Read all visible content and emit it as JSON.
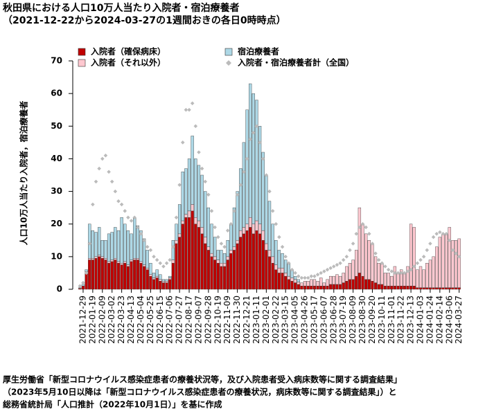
{
  "chart_data": {
    "type": "bar",
    "title": [
      "秋田県における人口10万人当たり入院者・宿泊療養者",
      "（2021-12-22から2024-03-27の1週間おきの各日0時時点）"
    ],
    "ylabel": "人口10万人当たり入院者，宿泊療養者",
    "source": [
      "厚生労働省「新型コロナウイルス感染症患者の療養状況等，及び入院患者受入病床数等に関する調査結果」",
      "（2023年5月10日以降は「新型コロナウイルス感染症患者の療養状況，病床数等に関する調査結果」）と",
      "総務省統計局「人口推計（2022年10月1日）」を基に作成"
    ],
    "categories": [
      null,
      "2021-12-29",
      null,
      null,
      "2022-01-19",
      null,
      null,
      "2022-02-09",
      null,
      null,
      "2022-03-02",
      null,
      null,
      "2022-03-23",
      null,
      null,
      "2022-04-13",
      null,
      null,
      "2022-05-04",
      null,
      null,
      "2022-05-25",
      null,
      null,
      "2022-06-15",
      null,
      null,
      "2022-07-06",
      null,
      null,
      "2022-07-27",
      null,
      null,
      "2022-08-17",
      null,
      null,
      "2022-09-07",
      null,
      null,
      "2022-09-28",
      null,
      null,
      "2022-10-19",
      null,
      null,
      "2022-11-09",
      null,
      null,
      "2022-11-30",
      null,
      null,
      "2022-12-21",
      null,
      null,
      "2023-01-11",
      null,
      null,
      "2023-02-01",
      null,
      null,
      "2023-02-22",
      null,
      null,
      "2023-03-15",
      null,
      null,
      "2023-04-05",
      null,
      null,
      "2023-04-26",
      null,
      null,
      "2023-05-17",
      null,
      null,
      "2023-06-07",
      null,
      null,
      "2023-06-28",
      null,
      null,
      "2023-07-19",
      null,
      null,
      "2023-08-09",
      null,
      null,
      "2023-08-30",
      null,
      null,
      "2023-09-20",
      null,
      null,
      "2023-10-11",
      null,
      null,
      "2023-11-01",
      null,
      null,
      "2023-11-22",
      null,
      null,
      "2023-12-13",
      null,
      null,
      "2024-01-03",
      null,
      null,
      "2024-01-24",
      null,
      null,
      "2024-02-14",
      null,
      null,
      "2024-03-06",
      null,
      null,
      "2024-03-27"
    ],
    "series": [
      {
        "name": "入院者（確保病床）",
        "color": "#c00000",
        "values": [
          0.3,
          1,
          5,
          9,
          9,
          9.5,
          10,
          9.5,
          9,
          8,
          8.5,
          9,
          8,
          7.5,
          8,
          7,
          8.5,
          9,
          9,
          8,
          7,
          6,
          4,
          3,
          3.5,
          2.5,
          2,
          2,
          3,
          8,
          14,
          16,
          20,
          22,
          22,
          24,
          20,
          19,
          17,
          14,
          12,
          10,
          9,
          8,
          7,
          7,
          9,
          11,
          12,
          14,
          16,
          17,
          18,
          19,
          17,
          18,
          17,
          15,
          12,
          10,
          8,
          6,
          5,
          5,
          4,
          3,
          2.5,
          2,
          1.5,
          1,
          1,
          1,
          1,
          1,
          1,
          1,
          1,
          1,
          1.5,
          1.5,
          1.5,
          1.5,
          2,
          2.5,
          3,
          3,
          4,
          5,
          4,
          3,
          3,
          2.5,
          2,
          1.5,
          1.5,
          1,
          1,
          1,
          1,
          1,
          1,
          1,
          1,
          1,
          1,
          0.5,
          0.5,
          0.5,
          0.5,
          0.5,
          0.5,
          0.5,
          0.5,
          0.5,
          0.5,
          0.5,
          0.5,
          0.5,
          0.5
        ]
      },
      {
        "name": "入院者（それ以外）",
        "color": "#ffc8d0",
        "values": [
          0,
          0,
          0.5,
          0.5,
          0.5,
          0.5,
          0.5,
          0.5,
          0.5,
          0.5,
          0.5,
          0.5,
          0.5,
          0.5,
          0.5,
          0.5,
          0.5,
          0.5,
          0.5,
          0.5,
          0.5,
          0.5,
          0.5,
          0.5,
          0.5,
          0.5,
          0.5,
          0.5,
          0.5,
          1,
          1,
          1,
          1,
          1,
          2,
          2,
          2,
          2,
          2,
          2,
          1,
          1,
          1,
          1,
          1,
          1,
          1,
          1,
          1,
          1,
          2,
          2,
          2,
          3,
          3,
          3,
          3,
          3,
          2,
          2,
          2,
          1.5,
          1.5,
          1.5,
          1,
          1,
          1,
          1,
          0.7,
          1,
          1.5,
          1.5,
          2,
          2,
          1.5,
          2.5,
          1,
          2,
          2.5,
          2.5,
          3,
          2.5,
          3,
          4.5,
          5,
          6,
          8,
          20,
          16,
          14,
          12,
          11.5,
          8,
          6.5,
          6.5,
          4,
          4,
          3,
          6,
          4,
          5,
          4,
          6,
          19,
          18,
          5.5,
          6.5,
          5.5,
          7.5,
          8.5,
          9.5,
          12.5,
          15.5,
          16.5,
          16.5,
          18.5,
          14.5,
          14.5,
          15
        ]
      },
      {
        "name": "宿泊療養者",
        "color": "#add8e6",
        "values": [
          0.2,
          0.5,
          0.5,
          10.5,
          8.5,
          7.5,
          8.5,
          5,
          5.5,
          8.5,
          8.5,
          9.5,
          9.5,
          14,
          11.5,
          10.5,
          8,
          12.5,
          10,
          9.5,
          8,
          5.5,
          3.5,
          1.5,
          2,
          1.5,
          0.5,
          0.5,
          0.5,
          6,
          5,
          9,
          15,
          14,
          16,
          21,
          18,
          17,
          16,
          14,
          12,
          9,
          6,
          3,
          4,
          3,
          5,
          8,
          12,
          15,
          19,
          26,
          35,
          41,
          40,
          37,
          30,
          24,
          21,
          15,
          10,
          7.5,
          5.5,
          4.5,
          4,
          4,
          2.5,
          1,
          0.8,
          0,
          0,
          0,
          0,
          0,
          0,
          0,
          0,
          0,
          0,
          0,
          0,
          0,
          0,
          0,
          0,
          0,
          0,
          0,
          0,
          0,
          0,
          0,
          0,
          0,
          0,
          0,
          0,
          0,
          0,
          0,
          0,
          0,
          0,
          0,
          0,
          0,
          0,
          0,
          0,
          0,
          0,
          0,
          0,
          0,
          0,
          0,
          0,
          0,
          0
        ]
      },
      {
        "name": "入院者・宿泊療養者計（全国）",
        "color": "#bbbbbb",
        "marker": "diamond",
        "values": [
          1,
          2,
          5,
          14,
          26,
          33,
          37,
          40,
          41,
          36,
          33,
          30,
          27,
          26,
          24,
          22,
          21,
          22,
          19,
          17,
          15,
          13,
          12,
          10,
          9,
          8,
          7,
          8,
          9,
          13,
          22,
          32,
          45,
          55,
          55,
          57,
          50,
          42,
          37,
          33,
          29,
          24,
          19,
          16,
          14,
          13,
          18,
          20,
          24,
          29,
          32,
          36,
          40,
          46,
          48,
          50,
          45,
          40,
          35,
          30,
          24,
          20,
          16,
          13,
          10,
          8,
          6,
          5,
          4,
          3.5,
          3.5,
          3.5,
          4,
          4,
          4.5,
          5,
          5.5,
          6,
          6.5,
          7,
          7.5,
          8,
          9,
          10,
          12,
          14,
          17,
          19,
          20,
          19,
          17,
          14,
          11,
          9,
          8,
          7,
          6,
          5.5,
          5,
          5,
          5,
          5,
          5.5,
          6,
          7,
          8,
          9,
          10,
          12,
          14,
          16,
          17,
          17.5,
          17,
          17,
          15,
          12,
          11,
          10
        ]
      }
    ],
    "ylim": [
      0,
      70
    ],
    "yticks": [
      0,
      10,
      20,
      30,
      40,
      50,
      60,
      70
    ],
    "grid": false
  }
}
